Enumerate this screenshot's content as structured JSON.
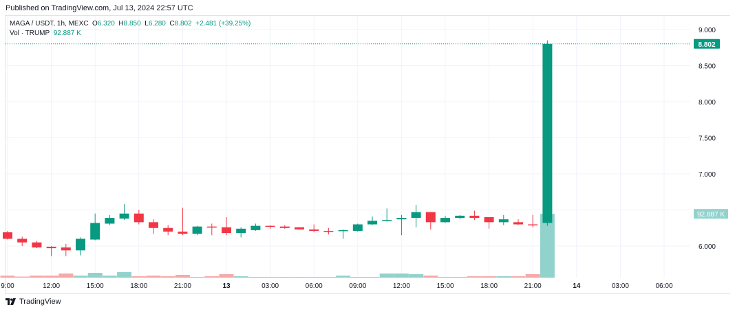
{
  "published": "Published on TradingView.com, Jul 13, 2024 22:57 UTC",
  "legend": {
    "symbol": "MAGA / USDT, 1h, MEXC",
    "o_label": "O",
    "o": "6.320",
    "h_label": "H",
    "h": "8.850",
    "l_label": "L",
    "l": "6.280",
    "c_label": "C",
    "c": "8.802",
    "change": "+2.481 (+39.25%)",
    "vol_label": "Vol · TRUMP",
    "vol": "92.887 K"
  },
  "footer": {
    "brand": "TradingView",
    "logo_icon": "tradingview-logo-icon"
  },
  "colors": {
    "up": "#089981",
    "down": "#f23645",
    "vol_up": "#92d2cc",
    "vol_down": "#f7a9a7",
    "grid": "#f0f3fa"
  },
  "chart_data": {
    "type": "candlestick",
    "interval": "1h",
    "ylim": [
      5.5,
      9.15
    ],
    "grid": true,
    "y_ticks": [
      "9.000",
      "8.500",
      "8.000",
      "7.500",
      "7.000",
      "6.000"
    ],
    "y_tick_values": [
      9.0,
      8.5,
      8.0,
      7.5,
      7.0,
      6.0
    ],
    "x_ticks": [
      {
        "label": "9:00",
        "hour": 0
      },
      {
        "label": "12:00",
        "hour": 3
      },
      {
        "label": "15:00",
        "hour": 6
      },
      {
        "label": "18:00",
        "hour": 9
      },
      {
        "label": "21:00",
        "hour": 12
      },
      {
        "label": "13",
        "hour": 15,
        "bold": true
      },
      {
        "label": "03:00",
        "hour": 18
      },
      {
        "label": "06:00",
        "hour": 21
      },
      {
        "label": "09:00",
        "hour": 24
      },
      {
        "label": "12:00",
        "hour": 27
      },
      {
        "label": "15:00",
        "hour": 30
      },
      {
        "label": "18:00",
        "hour": 33
      },
      {
        "label": "21:00",
        "hour": 36
      },
      {
        "label": "14",
        "hour": 39,
        "bold": true
      },
      {
        "label": "03:00",
        "hour": 42
      },
      {
        "label": "06:00",
        "hour": 45
      }
    ],
    "last_price_label": "8.802",
    "last_price": 8.802,
    "last_volume_label": "92.887 K",
    "last_volume": 92.887,
    "candles": [
      {
        "o": 6.19,
        "h": 6.21,
        "l": 6.09,
        "c": 6.1,
        "v": 3
      },
      {
        "o": 6.1,
        "h": 6.13,
        "l": 6.0,
        "c": 6.05,
        "v": 1.5
      },
      {
        "o": 6.05,
        "h": 6.07,
        "l": 5.97,
        "c": 5.98,
        "v": 3
      },
      {
        "o": 5.99,
        "h": 6.0,
        "l": 5.86,
        "c": 5.97,
        "v": 3
      },
      {
        "o": 5.98,
        "h": 6.03,
        "l": 5.86,
        "c": 5.94,
        "v": 6
      },
      {
        "o": 5.94,
        "h": 6.12,
        "l": 5.87,
        "c": 6.1,
        "v": 3
      },
      {
        "o": 6.09,
        "h": 6.45,
        "l": 6.08,
        "c": 6.32,
        "v": 7
      },
      {
        "o": 6.31,
        "h": 6.43,
        "l": 6.29,
        "c": 6.39,
        "v": 3
      },
      {
        "o": 6.38,
        "h": 6.58,
        "l": 6.36,
        "c": 6.45,
        "v": 8
      },
      {
        "o": 6.45,
        "h": 6.5,
        "l": 6.3,
        "c": 6.33,
        "v": 2
      },
      {
        "o": 6.33,
        "h": 6.37,
        "l": 6.17,
        "c": 6.25,
        "v": 3
      },
      {
        "o": 6.25,
        "h": 6.29,
        "l": 6.15,
        "c": 6.2,
        "v": 2
      },
      {
        "o": 6.2,
        "h": 6.53,
        "l": 6.15,
        "c": 6.17,
        "v": 4
      },
      {
        "o": 6.17,
        "h": 6.28,
        "l": 6.15,
        "c": 6.27,
        "v": 1
      },
      {
        "o": 6.27,
        "h": 6.31,
        "l": 6.15,
        "c": 6.26,
        "v": 2
      },
      {
        "o": 6.26,
        "h": 6.4,
        "l": 6.15,
        "c": 6.18,
        "v": 5
      },
      {
        "o": 6.18,
        "h": 6.26,
        "l": 6.12,
        "c": 6.24,
        "v": 2
      },
      {
        "o": 6.22,
        "h": 6.31,
        "l": 6.21,
        "c": 6.28,
        "v": 1
      },
      {
        "o": 6.28,
        "h": 6.29,
        "l": 6.24,
        "c": 6.27,
        "v": 0.8
      },
      {
        "o": 6.27,
        "h": 6.29,
        "l": 6.24,
        "c": 6.25,
        "v": 1
      },
      {
        "o": 6.26,
        "h": 6.26,
        "l": 6.23,
        "c": 6.23,
        "v": 0.8
      },
      {
        "o": 6.23,
        "h": 6.3,
        "l": 6.19,
        "c": 6.21,
        "v": 1
      },
      {
        "o": 6.21,
        "h": 6.25,
        "l": 6.16,
        "c": 6.2,
        "v": 1
      },
      {
        "o": 6.21,
        "h": 6.23,
        "l": 6.1,
        "c": 6.22,
        "v": 3
      },
      {
        "o": 6.21,
        "h": 6.31,
        "l": 6.2,
        "c": 6.3,
        "v": 1
      },
      {
        "o": 6.3,
        "h": 6.41,
        "l": 6.29,
        "c": 6.35,
        "v": 1
      },
      {
        "o": 6.35,
        "h": 6.52,
        "l": 6.34,
        "c": 6.36,
        "v": 6
      },
      {
        "o": 6.37,
        "h": 6.43,
        "l": 6.15,
        "c": 6.39,
        "v": 6
      },
      {
        "o": 6.39,
        "h": 6.57,
        "l": 6.26,
        "c": 6.47,
        "v": 5
      },
      {
        "o": 6.47,
        "h": 6.47,
        "l": 6.23,
        "c": 6.33,
        "v": 3
      },
      {
        "o": 6.33,
        "h": 6.42,
        "l": 6.32,
        "c": 6.39,
        "v": 1
      },
      {
        "o": 6.39,
        "h": 6.43,
        "l": 6.37,
        "c": 6.42,
        "v": 1
      },
      {
        "o": 6.42,
        "h": 6.49,
        "l": 6.36,
        "c": 6.39,
        "v": 2
      },
      {
        "o": 6.4,
        "h": 6.4,
        "l": 6.24,
        "c": 6.33,
        "v": 2
      },
      {
        "o": 6.33,
        "h": 6.43,
        "l": 6.29,
        "c": 6.37,
        "v": 2
      },
      {
        "o": 6.33,
        "h": 6.37,
        "l": 6.29,
        "c": 6.3,
        "v": 2
      },
      {
        "o": 6.3,
        "h": 6.43,
        "l": 6.26,
        "c": 6.29,
        "v": 5
      },
      {
        "o": 6.32,
        "h": 8.85,
        "l": 6.28,
        "c": 8.802,
        "v": 92.887
      }
    ]
  }
}
